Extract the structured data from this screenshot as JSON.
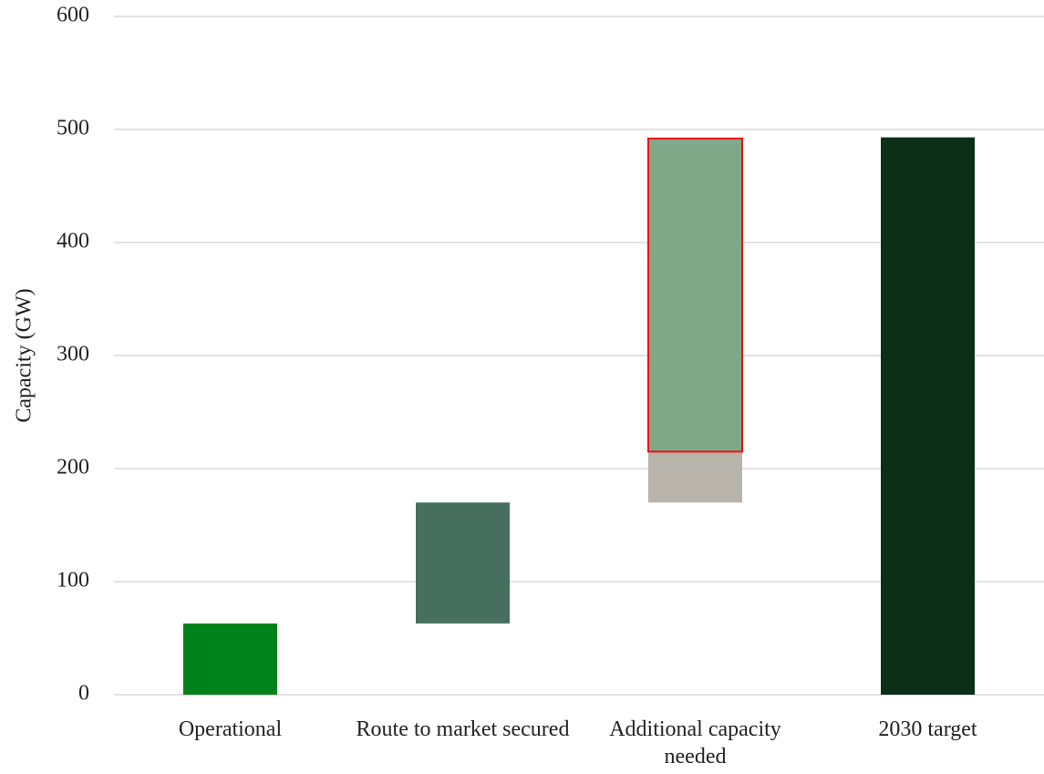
{
  "chart_data": {
    "type": "waterfall",
    "ylabel": "Capacity (GW)",
    "categories": [
      "Operational",
      "Route to market secured",
      "Additional capacity needed",
      "2030 target"
    ],
    "bars": [
      {
        "segments": [
          {
            "value": 63,
            "color": "#00821a"
          }
        ]
      },
      {
        "segments": [
          {
            "value": 107,
            "color": "#466f5f"
          }
        ]
      },
      {
        "segments": [
          {
            "value": 45,
            "color": "#b8b3ab"
          },
          {
            "value": 277,
            "color": "#82a88a",
            "border": "#ee1111"
          }
        ]
      },
      {
        "total": true,
        "segments": [
          {
            "value": 493,
            "color": "#0c2f18"
          }
        ]
      }
    ],
    "ylim": [
      0,
      600
    ],
    "yticks": [
      0,
      100,
      200,
      300,
      400,
      500,
      600
    ],
    "grid": true
  }
}
